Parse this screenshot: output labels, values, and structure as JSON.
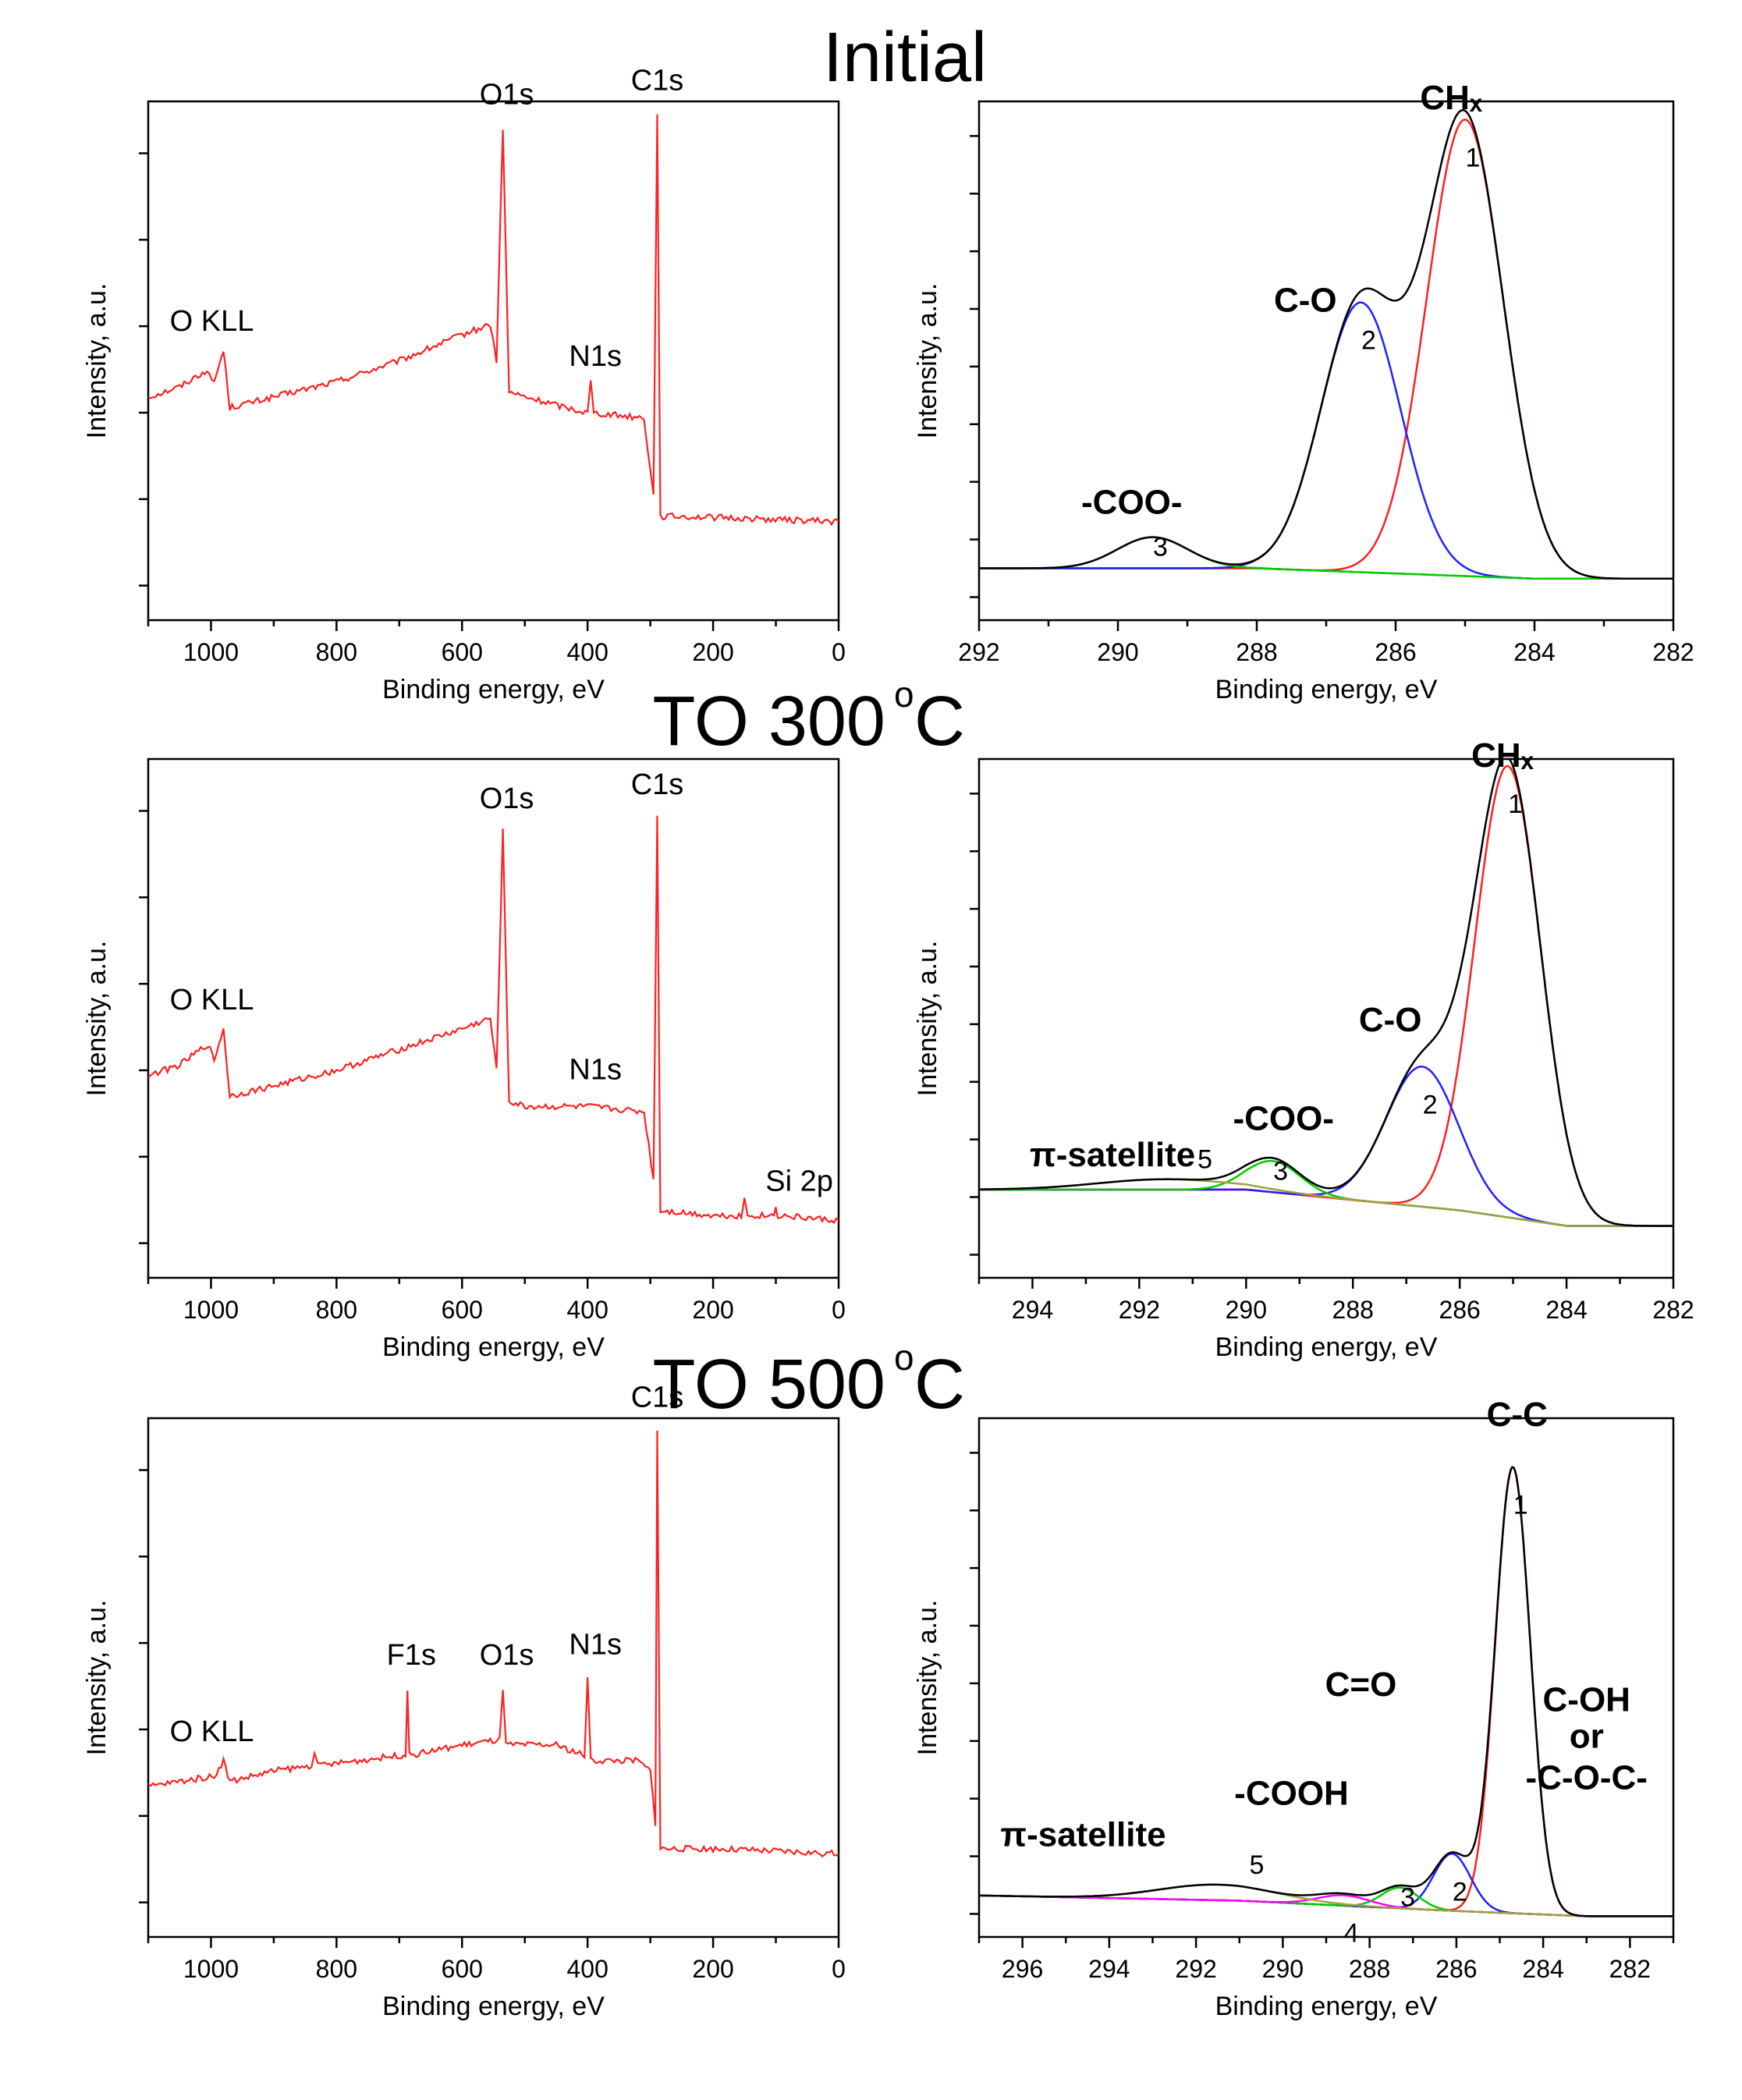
{
  "sections": [
    {
      "title": "Initial"
    },
    {
      "title": "TO 300",
      "unit_sup": "o",
      "unit": "C"
    },
    {
      "title": "TO 500",
      "unit_sup": "o",
      "unit": "C"
    }
  ],
  "axis": {
    "xlabel": "Binding energy, eV",
    "ylabel": "Intensity, a.u."
  },
  "colors": {
    "survey": "#ff2020",
    "envelope": "#000000",
    "comp1": "#ff2020",
    "comp2": "#2020ff",
    "comp3": "#00cc00",
    "comp4": "#ff00ff",
    "comp5": "#a0a040",
    "baseline_initial": "#00dd00",
    "baseline_300": "#ff00ff",
    "baseline_500": "#a0a040"
  },
  "chart_data": [
    {
      "type": "line",
      "section": "Initial",
      "panel": "survey",
      "xlabel": "Binding energy, eV",
      "ylabel": "Intensity, a.u.",
      "xlim": [
        1100,
        0
      ],
      "xticks": [
        1000,
        800,
        600,
        400,
        200,
        0
      ],
      "series": [
        {
          "values": [
            [
              1100,
              0.43
            ],
            [
              1050,
              0.45
            ],
            [
              1010,
              0.48
            ],
            [
              995,
              0.46
            ],
            [
              980,
              0.52
            ],
            [
              970,
              0.41
            ],
            [
              900,
              0.43
            ],
            [
              800,
              0.46
            ],
            [
              700,
              0.5
            ],
            [
              600,
              0.55
            ],
            [
              555,
              0.57
            ],
            [
              545,
              0.5
            ],
            [
              535,
              0.95
            ],
            [
              525,
              0.44
            ],
            [
              500,
              0.43
            ],
            [
              400,
              0.4
            ],
            [
              395,
              0.46
            ],
            [
              390,
              0.4
            ],
            [
              310,
              0.39
            ],
            [
              295,
              0.24
            ],
            [
              289,
              0.98
            ],
            [
              284,
              0.2
            ],
            [
              250,
              0.2
            ],
            [
              0,
              0.19
            ]
          ]
        }
      ],
      "annotations": [
        {
          "text": "O KLL",
          "x": 980,
          "y": 0.52
        },
        {
          "text": "O1s",
          "x": 535,
          "y": 0.95
        },
        {
          "text": "N1s",
          "x": 400,
          "y": 0.46
        },
        {
          "text": "C1s",
          "x": 289,
          "y": 0.98
        }
      ]
    },
    {
      "type": "line",
      "section": "Initial",
      "panel": "c1s-detail",
      "xlabel": "Binding energy, eV",
      "ylabel": "Intensity, a.u.",
      "xlim": [
        292,
        282
      ],
      "xticks": [
        292,
        290,
        288,
        286,
        284,
        282
      ],
      "baseline": [
        [
          292,
          0.1
        ],
        [
          288,
          0.1
        ],
        [
          284,
          0.08
        ],
        [
          282,
          0.08
        ]
      ],
      "components": [
        {
          "label": "1",
          "center": 285.0,
          "height": 0.88,
          "width": 1.3
        },
        {
          "label": "2",
          "center": 286.5,
          "height": 0.52,
          "width": 1.35
        },
        {
          "label": "3",
          "center": 289.5,
          "height": 0.06,
          "width": 1.2
        }
      ],
      "annotations": [
        {
          "text": "CHₓ",
          "x": 285.2,
          "y": 0.97
        },
        {
          "text": "C-O",
          "x": 287.3,
          "y": 0.58
        },
        {
          "text": "-COO-",
          "x": 289.8,
          "y": 0.19
        }
      ]
    },
    {
      "type": "line",
      "section": "TO 300 °C",
      "panel": "survey",
      "xlabel": "Binding energy, eV",
      "ylabel": "Intensity, a.u.",
      "xlim": [
        1100,
        0
      ],
      "xticks": [
        1000,
        800,
        600,
        400,
        200,
        0
      ],
      "series": [
        {
          "values": [
            [
              1100,
              0.39
            ],
            [
              1050,
              0.41
            ],
            [
              1005,
              0.45
            ],
            [
              995,
              0.42
            ],
            [
              980,
              0.48
            ],
            [
              970,
              0.35
            ],
            [
              900,
              0.37
            ],
            [
              800,
              0.4
            ],
            [
              700,
              0.44
            ],
            [
              600,
              0.48
            ],
            [
              555,
              0.5
            ],
            [
              545,
              0.4
            ],
            [
              535,
              0.86
            ],
            [
              525,
              0.34
            ],
            [
              500,
              0.33
            ],
            [
              400,
              0.33
            ],
            [
              310,
              0.32
            ],
            [
              295,
              0.19
            ],
            [
              289,
              0.89
            ],
            [
              284,
              0.13
            ],
            [
              200,
              0.12
            ],
            [
              155,
              0.12
            ],
            [
              150,
              0.15
            ],
            [
              145,
              0.12
            ],
            [
              103,
              0.12
            ],
            [
              100,
              0.14
            ],
            [
              97,
              0.12
            ],
            [
              0,
              0.11
            ]
          ]
        }
      ],
      "annotations": [
        {
          "text": "O KLL",
          "x": 980,
          "y": 0.48
        },
        {
          "text": "O1s",
          "x": 535,
          "y": 0.86
        },
        {
          "text": "N1s",
          "x": 400,
          "y": 0.36
        },
        {
          "text": "C1s",
          "x": 289,
          "y": 0.89
        },
        {
          "text": "Si 2p",
          "x": 100,
          "y": 0.15
        }
      ]
    },
    {
      "type": "line",
      "section": "TO 300 °C",
      "panel": "c1s-detail",
      "xlabel": "Binding energy, eV",
      "ylabel": "Intensity, a.u.",
      "xlim": [
        295,
        282
      ],
      "xticks": [
        294,
        292,
        290,
        288,
        286,
        284,
        282
      ],
      "baseline": [
        [
          295,
          0.17
        ],
        [
          290,
          0.17
        ],
        [
          286,
          0.13
        ],
        [
          284,
          0.1
        ],
        [
          282,
          0.1
        ]
      ],
      "components": [
        {
          "label": "1",
          "center": 285.1,
          "height": 0.87,
          "width": 1.45
        },
        {
          "label": "2",
          "center": 286.7,
          "height": 0.27,
          "width": 1.6
        },
        {
          "label": "3",
          "center": 289.5,
          "height": 0.06,
          "width": 1.2
        },
        {
          "label": "5",
          "center": 291.5,
          "height": 0.02,
          "width": 3.0
        }
      ],
      "annotations": [
        {
          "text": "CHₓ",
          "x": 285.2,
          "y": 0.97
        },
        {
          "text": "C-O",
          "x": 287.3,
          "y": 0.46
        },
        {
          "text": "-COO-",
          "x": 289.3,
          "y": 0.27
        },
        {
          "text": "π-satellite",
          "x": 292.5,
          "y": 0.2
        }
      ]
    },
    {
      "type": "line",
      "section": "TO 500 °C",
      "panel": "survey",
      "xlabel": "Binding energy, eV",
      "ylabel": "Intensity, a.u.",
      "xlim": [
        1100,
        0
      ],
      "xticks": [
        1000,
        800,
        600,
        400,
        200,
        0
      ],
      "series": [
        {
          "values": [
            [
              1100,
              0.29
            ],
            [
              1050,
              0.3
            ],
            [
              995,
              0.31
            ],
            [
              980,
              0.34
            ],
            [
              970,
              0.3
            ],
            [
              900,
              0.32
            ],
            [
              840,
              0.33
            ],
            [
              835,
              0.36
            ],
            [
              830,
              0.33
            ],
            [
              700,
              0.35
            ],
            [
              690,
              0.35
            ],
            [
              687,
              0.48
            ],
            [
              684,
              0.35
            ],
            [
              600,
              0.37
            ],
            [
              540,
              0.38
            ],
            [
              535,
              0.48
            ],
            [
              530,
              0.37
            ],
            [
              450,
              0.37
            ],
            [
              405,
              0.35
            ],
            [
              400,
              0.5
            ],
            [
              395,
              0.34
            ],
            [
              320,
              0.34
            ],
            [
              300,
              0.32
            ],
            [
              292,
              0.22
            ],
            [
              289,
              0.98
            ],
            [
              284,
              0.17
            ],
            [
              200,
              0.17
            ],
            [
              0,
              0.16
            ]
          ]
        }
      ],
      "annotations": [
        {
          "text": "O KLL",
          "x": 980,
          "y": 0.34
        },
        {
          "text": "F1s",
          "x": 687,
          "y": 0.48
        },
        {
          "text": "O1s",
          "x": 535,
          "y": 0.48
        },
        {
          "text": "N1s",
          "x": 400,
          "y": 0.5
        },
        {
          "text": "C1s",
          "x": 289,
          "y": 0.98
        }
      ]
    },
    {
      "type": "line",
      "section": "TO 500 °C",
      "panel": "c1s-detail",
      "xlabel": "Binding energy, eV",
      "ylabel": "Intensity, a.u.",
      "xlim": [
        297,
        281
      ],
      "xticks": [
        296,
        294,
        292,
        290,
        288,
        286,
        284,
        282
      ],
      "baseline": [
        [
          297,
          0.08
        ],
        [
          291,
          0.07
        ],
        [
          286,
          0.05
        ],
        [
          283,
          0.04
        ],
        [
          281,
          0.04
        ]
      ],
      "components": [
        {
          "label": "1",
          "center": 284.7,
          "height": 0.86,
          "width": 0.95
        },
        {
          "label": "2",
          "center": 286.1,
          "height": 0.11,
          "width": 1.0
        },
        {
          "label": "3",
          "center": 287.3,
          "height": 0.04,
          "width": 1.0
        },
        {
          "label": "4",
          "center": 288.6,
          "height": 0.02,
          "width": 1.4
        },
        {
          "label": "5",
          "center": 291.5,
          "height": 0.03,
          "width": 3.2
        }
      ],
      "annotations": [
        {
          "text": "C-C",
          "x": 284.6,
          "y": 0.97
        },
        {
          "text": "C-OH",
          "x": 283.0,
          "y": 0.42
        },
        {
          "text": "or",
          "x": 283.0,
          "y": 0.35
        },
        {
          "text": "-C-O-C-",
          "x": 283.0,
          "y": 0.27
        },
        {
          "text": "C=O",
          "x": 288.2,
          "y": 0.45
        },
        {
          "text": "-COOH",
          "x": 289.8,
          "y": 0.24
        },
        {
          "text": "π-satellite",
          "x": 294.6,
          "y": 0.16
        }
      ]
    }
  ]
}
